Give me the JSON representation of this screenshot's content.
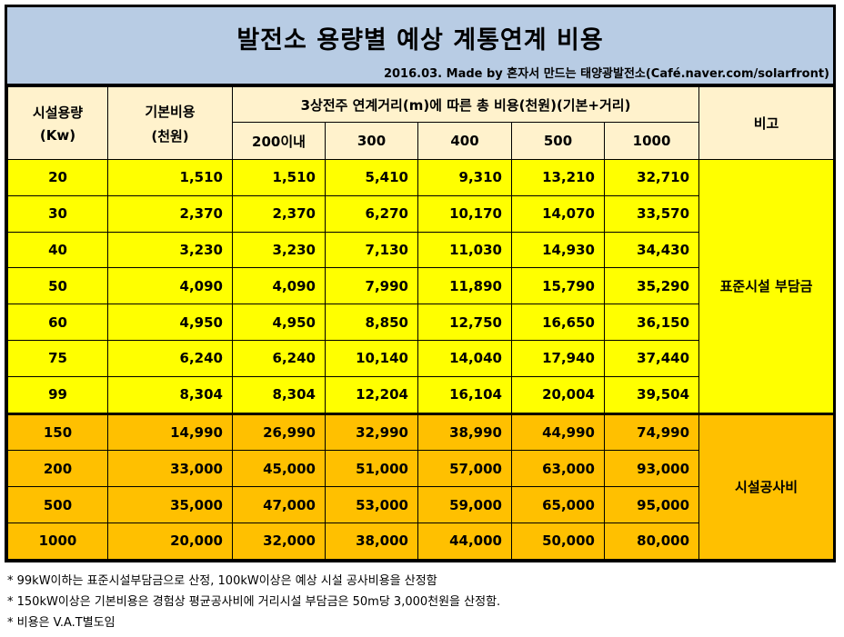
{
  "title": "발전소 용량별 예상 계통연계 비용",
  "subtitle": "2016.03. Made by 혼자서 만드는 태양광발전소(Café.naver.com/solarfront)",
  "headers": {
    "capacity": [
      "시설용량",
      "(Kw)"
    ],
    "base_cost": [
      "기본비용",
      "(천원)"
    ],
    "distance_group": "3상전주 연계거리(m)에 따른 총 비용(천원)(기본+거리)",
    "distances": [
      "200이내",
      "300",
      "400",
      "500",
      "1000"
    ],
    "remark": "비고"
  },
  "rows": [
    {
      "capacity": "20",
      "base": "1,510",
      "d": [
        "1,510",
        "5,410",
        "9,310",
        "13,210",
        "32,710"
      ]
    },
    {
      "capacity": "30",
      "base": "2,370",
      "d": [
        "2,370",
        "6,270",
        "10,170",
        "14,070",
        "33,570"
      ]
    },
    {
      "capacity": "40",
      "base": "3,230",
      "d": [
        "3,230",
        "7,130",
        "11,030",
        "14,930",
        "34,430"
      ]
    },
    {
      "capacity": "50",
      "base": "4,090",
      "d": [
        "4,090",
        "7,990",
        "11,890",
        "15,790",
        "35,290"
      ]
    },
    {
      "capacity": "60",
      "base": "4,950",
      "d": [
        "4,950",
        "8,850",
        "12,750",
        "16,650",
        "36,150"
      ]
    },
    {
      "capacity": "75",
      "base": "6,240",
      "d": [
        "6,240",
        "10,140",
        "14,040",
        "17,940",
        "37,440"
      ]
    },
    {
      "capacity": "99",
      "base": "8,304",
      "d": [
        "8,304",
        "12,204",
        "16,104",
        "20,004",
        "39,504"
      ]
    },
    {
      "capacity": "150",
      "base": "14,990",
      "d": [
        "26,990",
        "32,990",
        "38,990",
        "44,990",
        "74,990"
      ]
    },
    {
      "capacity": "200",
      "base": "33,000",
      "d": [
        "45,000",
        "51,000",
        "57,000",
        "63,000",
        "93,000"
      ]
    },
    {
      "capacity": "500",
      "base": "35,000",
      "d": [
        "47,000",
        "53,000",
        "59,000",
        "65,000",
        "95,000"
      ]
    },
    {
      "capacity": "1000",
      "base": "20,000",
      "d": [
        "32,000",
        "38,000",
        "44,000",
        "50,000",
        "80,000"
      ]
    }
  ],
  "remarks": {
    "standard": "표준시설 부담금",
    "construction": "시설공사비"
  },
  "notes": [
    "* 99kW이하는 표준시설부담금으로 산정, 100kW이상은 예상 시설 공사비용을 산정함",
    "* 150kW이상은 기본비용은 경험상 평균공사비에 거리시설 부담금은 50m당 3,000천원을 산정함.",
    "* 비용은 V.A.T별도임"
  ],
  "colors": {
    "title_bg": "#b8cce4",
    "header_bg": "#fff2cc",
    "standard_rows": "#ffff00",
    "construction_rows": "#ffc000"
  }
}
